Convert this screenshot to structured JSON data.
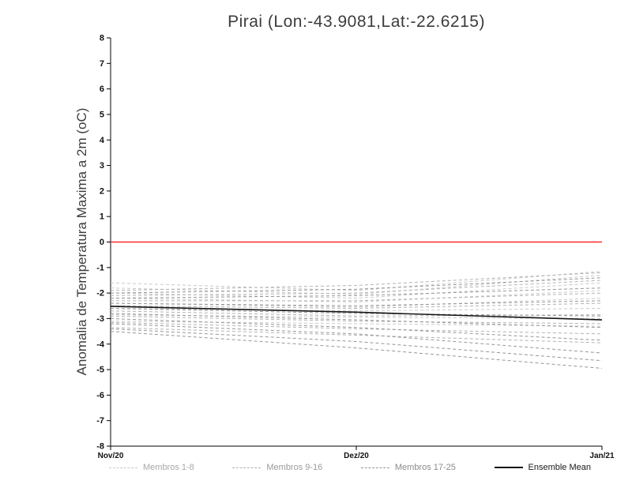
{
  "chart_data": {
    "type": "line",
    "title": "Pirai (Lon:-43.9081,Lat:-22.6215)",
    "ylabel": "Anomalia de Temperatura Maxima a 2m (oC)",
    "xlabel": "",
    "categories": [
      "Nov/20",
      "Dez/20",
      "Jan/21"
    ],
    "ylim": [
      -8,
      8
    ],
    "ytick_step": 1,
    "grid": false,
    "legend_position": "bottom",
    "axis_color": "#000000",
    "zero_line": {
      "value": 0,
      "color": "#ff2a2a"
    },
    "series_groups": [
      {
        "name": "Membros 1-8",
        "color": "#c9c9c9",
        "dash": "4,3",
        "members": [
          [
            -1.6,
            -1.9,
            -1.15
          ],
          [
            -1.8,
            -2.05,
            -1.3
          ],
          [
            -2.0,
            -2.2,
            -1.6
          ],
          [
            -2.2,
            -2.35,
            -1.9
          ],
          [
            -2.4,
            -2.55,
            -2.2
          ],
          [
            -2.6,
            -2.7,
            -2.6
          ],
          [
            -2.85,
            -2.95,
            -3.0
          ],
          [
            -3.1,
            -3.2,
            -3.3
          ]
        ]
      },
      {
        "name": "Membros 9-16",
        "color": "#b2b2b2",
        "dash": "4,3",
        "members": [
          [
            -1.9,
            -1.7,
            -1.2
          ],
          [
            -2.1,
            -2.0,
            -1.5
          ],
          [
            -2.3,
            -2.3,
            -2.0
          ],
          [
            -2.5,
            -2.6,
            -2.4
          ],
          [
            -2.7,
            -2.9,
            -2.85
          ],
          [
            -2.9,
            -3.1,
            -3.2
          ],
          [
            -3.15,
            -3.4,
            -3.6
          ],
          [
            -3.35,
            -3.65,
            -3.95
          ]
        ]
      },
      {
        "name": "Membros 17-25",
        "color": "#969696",
        "dash": "4,3",
        "members": [
          [
            -2.0,
            -1.85,
            -1.4
          ],
          [
            -2.2,
            -2.1,
            -1.8
          ],
          [
            -2.4,
            -2.5,
            -2.3
          ],
          [
            -2.6,
            -2.8,
            -2.9
          ],
          [
            -2.8,
            -3.05,
            -3.35
          ],
          [
            -3.0,
            -3.35,
            -3.85
          ],
          [
            -3.2,
            -3.6,
            -4.35
          ],
          [
            -3.4,
            -3.9,
            -4.65
          ],
          [
            -3.5,
            -4.15,
            -4.95
          ]
        ]
      }
    ],
    "ensemble_mean": {
      "name": "Ensemble Mean",
      "color": "#141414",
      "values": [
        -2.52,
        -2.75,
        -3.05
      ]
    },
    "legend": [
      {
        "label": "Membros 1-8",
        "color": "#c9c9c9",
        "dash": true,
        "text_color": "#a8a8a8"
      },
      {
        "label": "Membros 9-16",
        "color": "#b2b2b2",
        "dash": true,
        "text_color": "#9a9a9a"
      },
      {
        "label": "Membros 17-25",
        "color": "#969696",
        "dash": true,
        "text_color": "#8a8a8a"
      },
      {
        "label": "Ensemble Mean",
        "color": "#141414",
        "dash": false,
        "text_color": "#1a1a1a"
      }
    ]
  }
}
